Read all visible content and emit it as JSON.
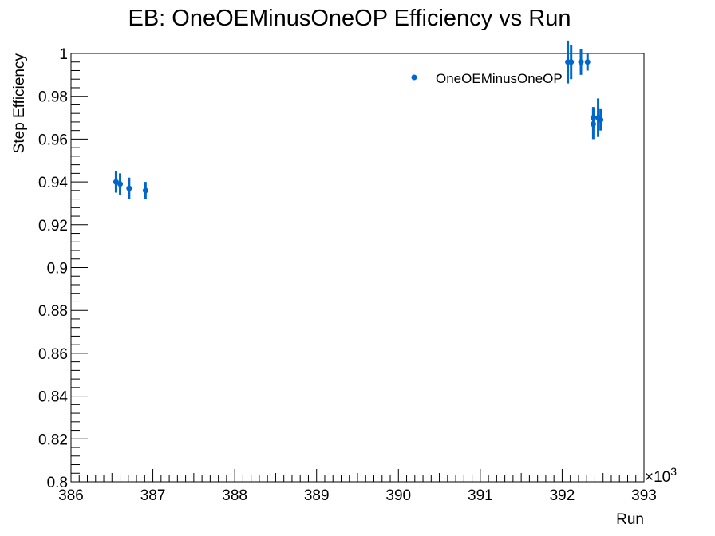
{
  "chart_data": {
    "type": "scatter",
    "title": "EB: OneOEMinusOneOP Efficiency vs Run",
    "xlabel": "Run",
    "ylabel": "Step Efficiency",
    "x_multiplier_label": "×10",
    "x_multiplier_exp": "3",
    "xlim": [
      386,
      393
    ],
    "ylim": [
      0.8,
      1.0
    ],
    "x_ticks": [
      386,
      387,
      388,
      389,
      390,
      391,
      392,
      393
    ],
    "x_tick_labels": [
      "386",
      "387",
      "388",
      "389",
      "390",
      "391",
      "392",
      "393"
    ],
    "y_ticks": [
      0.8,
      0.82,
      0.84,
      0.86,
      0.88,
      0.9,
      0.92,
      0.94,
      0.96,
      0.98,
      1.0
    ],
    "y_tick_labels": [
      "0.8",
      "0.82",
      "0.84",
      "0.86",
      "0.88",
      "0.9",
      "0.92",
      "0.94",
      "0.96",
      "0.98",
      "1"
    ],
    "grid": false,
    "legend_position": "top-right",
    "color": "#0066cc",
    "series": [
      {
        "name": "OneOEMinusOneOP",
        "points": [
          {
            "x": 386.55,
            "y": 0.94,
            "err": 0.005
          },
          {
            "x": 386.6,
            "y": 0.939,
            "err": 0.005
          },
          {
            "x": 386.71,
            "y": 0.937,
            "err": 0.005
          },
          {
            "x": 386.91,
            "y": 0.936,
            "err": 0.004
          },
          {
            "x": 392.07,
            "y": 0.996,
            "err": 0.01
          },
          {
            "x": 392.11,
            "y": 0.996,
            "err": 0.008
          },
          {
            "x": 392.23,
            "y": 0.996,
            "err": 0.006
          },
          {
            "x": 392.31,
            "y": 0.996,
            "err": 0.004
          },
          {
            "x": 392.38,
            "y": 0.97,
            "err": 0.005
          },
          {
            "x": 392.38,
            "y": 0.967,
            "err": 0.007
          },
          {
            "x": 392.44,
            "y": 0.97,
            "err": 0.009
          },
          {
            "x": 392.47,
            "y": 0.969,
            "err": 0.005
          }
        ]
      }
    ]
  }
}
